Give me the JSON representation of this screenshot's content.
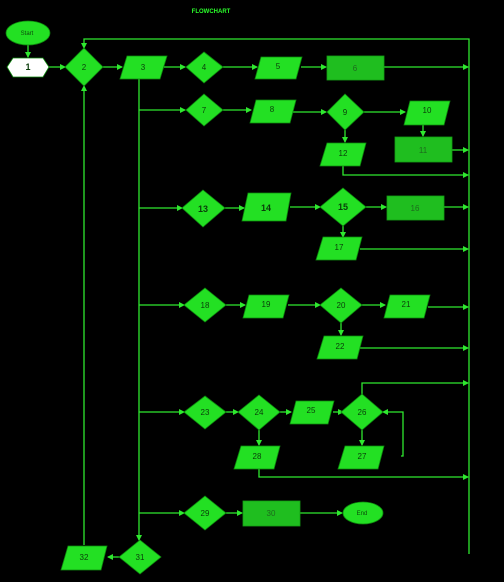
{
  "title": "FLOWCHART",
  "start_label": "Start",
  "end_label": "End",
  "nodes": {
    "n1": "1",
    "n2": "2",
    "n3": "3",
    "n4": "4",
    "n5": "5",
    "n6": "6",
    "n7": "7",
    "n8": "8",
    "n9": "9",
    "n10": "10",
    "n11": "11",
    "n12": "12",
    "n13": "13",
    "n14": "14",
    "n15": "15",
    "n16": "16",
    "n17": "17",
    "n18": "18",
    "n19": "19",
    "n20": "20",
    "n21": "21",
    "n22": "22",
    "n23": "23",
    "n24": "24",
    "n25": "25",
    "n26": "26",
    "n27": "27",
    "n28": "28",
    "n29": "29",
    "n30": "30",
    "n31": "31",
    "n32": "32"
  },
  "colors": {
    "background": "#000000",
    "node": "#23e023",
    "connector": "#2fe82f",
    "start_node": "#ffffff"
  }
}
